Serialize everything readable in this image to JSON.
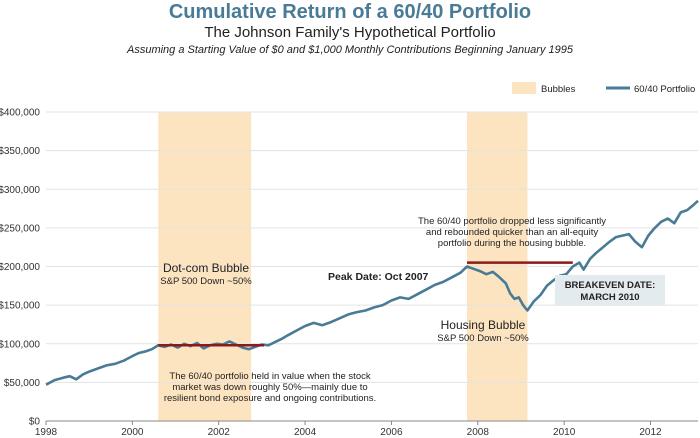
{
  "chart_data": {
    "type": "line",
    "title": "Cumulative Return of a 60/40 Portfolio",
    "subtitle": "The Johnson Family's Hypothetical Portfolio",
    "subtitle2": "Assuming a Starting Value of $0 and $1,000 Monthly Contributions Beginning January 1995",
    "xlabel": "",
    "ylabel": "",
    "xlim": [
      1998,
      2013.1
    ],
    "ylim": [
      0,
      400000
    ],
    "x_ticks": [
      {
        "value": 1998,
        "label": "1998"
      },
      {
        "value": 2000,
        "label": "2000"
      },
      {
        "value": 2002,
        "label": "2002"
      },
      {
        "value": 2004,
        "label": "2004"
      },
      {
        "value": 2006,
        "label": "2006"
      },
      {
        "value": 2008,
        "label": "2008"
      },
      {
        "value": 2010,
        "label": "2010"
      },
      {
        "value": 2012,
        "label": "2012"
      }
    ],
    "y_ticks": [
      {
        "value": 0,
        "label": "$0"
      },
      {
        "value": 50000,
        "label": "$50,000"
      },
      {
        "value": 100000,
        "label": "$100,000"
      },
      {
        "value": 150000,
        "label": "$150,000"
      },
      {
        "value": 200000,
        "label": "$200,000"
      },
      {
        "value": 250000,
        "label": "$250,000"
      },
      {
        "value": 300000,
        "label": "$300,000"
      },
      {
        "value": 350000,
        "label": "$350,000"
      },
      {
        "value": 400000,
        "label": "$400,000"
      }
    ],
    "grid": true,
    "legend_position": "top-right",
    "legend": {
      "bubbles_label": "Bubbles",
      "series_label": "60/40 Portfolio"
    },
    "colors": {
      "title": "#4a7b96",
      "line": "#4a7b96",
      "bubble": "#fde4c0",
      "breakeven": "#8b1a1a",
      "grid": "#e3e3e3",
      "breakeven_box": "#e3ebee"
    },
    "bubbles": [
      {
        "start": 2000.6,
        "end": 2002.75,
        "name": "Dot-com Bubble",
        "note": "S&P 500 Down ~50%"
      },
      {
        "start": 2007.75,
        "end": 2009.15,
        "name": "Housing Bubble",
        "note": "S&P 500 Down ~50%"
      }
    ],
    "breakeven_lines": [
      {
        "x_start": 2000.6,
        "x_end": 2003.05,
        "y": 98000
      },
      {
        "x_start": 2007.75,
        "x_end": 2010.2,
        "y": 205000
      }
    ],
    "annotations": {
      "peak_label": "Peak Date: Oct 2007",
      "breakeven_label_line1": "BREAKEVEN DATE:",
      "breakeven_label_line2": "MARCH 2010",
      "dotcom_note": [
        "The 60/40 portfolio held in value when the stock",
        "market was down roughly 50%—mainly due to",
        "resilient bond exposure and ongoing contributions."
      ],
      "housing_note": [
        "The 60/40 portfolio dropped less significantly",
        "and rebounded quicker than an all-equity",
        "portfolio during the housing bubble."
      ]
    },
    "series": [
      {
        "name": "60/40 Portfolio",
        "points": [
          [
            1998.0,
            47000
          ],
          [
            1998.2,
            53000
          ],
          [
            1998.4,
            56000
          ],
          [
            1998.55,
            58000
          ],
          [
            1998.7,
            54000
          ],
          [
            1998.85,
            60000
          ],
          [
            1999.0,
            64000
          ],
          [
            1999.2,
            68000
          ],
          [
            1999.4,
            72000
          ],
          [
            1999.6,
            74000
          ],
          [
            1999.8,
            78000
          ],
          [
            2000.0,
            84000
          ],
          [
            2000.15,
            88000
          ],
          [
            2000.3,
            90000
          ],
          [
            2000.45,
            93000
          ],
          [
            2000.6,
            98000
          ],
          [
            2000.75,
            96000
          ],
          [
            2000.9,
            99000
          ],
          [
            2001.05,
            95000
          ],
          [
            2001.2,
            100000
          ],
          [
            2001.35,
            97000
          ],
          [
            2001.5,
            101000
          ],
          [
            2001.65,
            94000
          ],
          [
            2001.8,
            98000
          ],
          [
            2001.95,
            100000
          ],
          [
            2002.1,
            99000
          ],
          [
            2002.25,
            103000
          ],
          [
            2002.4,
            99000
          ],
          [
            2002.55,
            95000
          ],
          [
            2002.7,
            93000
          ],
          [
            2002.85,
            96000
          ],
          [
            2003.0,
            99000
          ],
          [
            2003.15,
            98000
          ],
          [
            2003.3,
            102000
          ],
          [
            2003.45,
            106000
          ],
          [
            2003.6,
            111000
          ],
          [
            2003.8,
            117000
          ],
          [
            2004.0,
            123000
          ],
          [
            2004.2,
            127000
          ],
          [
            2004.4,
            124000
          ],
          [
            2004.6,
            128000
          ],
          [
            2004.8,
            133000
          ],
          [
            2005.0,
            138000
          ],
          [
            2005.2,
            141000
          ],
          [
            2005.4,
            143000
          ],
          [
            2005.6,
            147000
          ],
          [
            2005.8,
            150000
          ],
          [
            2006.0,
            156000
          ],
          [
            2006.2,
            160000
          ],
          [
            2006.4,
            158000
          ],
          [
            2006.6,
            164000
          ],
          [
            2006.8,
            170000
          ],
          [
            2007.0,
            176000
          ],
          [
            2007.2,
            180000
          ],
          [
            2007.4,
            186000
          ],
          [
            2007.6,
            192000
          ],
          [
            2007.75,
            200000
          ],
          [
            2007.9,
            197000
          ],
          [
            2008.05,
            194000
          ],
          [
            2008.2,
            190000
          ],
          [
            2008.35,
            193000
          ],
          [
            2008.5,
            186000
          ],
          [
            2008.65,
            178000
          ],
          [
            2008.75,
            165000
          ],
          [
            2008.85,
            158000
          ],
          [
            2008.95,
            160000
          ],
          [
            2009.05,
            150000
          ],
          [
            2009.15,
            143000
          ],
          [
            2009.3,
            155000
          ],
          [
            2009.45,
            163000
          ],
          [
            2009.6,
            175000
          ],
          [
            2009.75,
            182000
          ],
          [
            2009.9,
            188000
          ],
          [
            2010.05,
            190000
          ],
          [
            2010.2,
            200000
          ],
          [
            2010.35,
            205000
          ],
          [
            2010.45,
            196000
          ],
          [
            2010.6,
            210000
          ],
          [
            2010.75,
            218000
          ],
          [
            2010.9,
            225000
          ],
          [
            2011.05,
            232000
          ],
          [
            2011.2,
            238000
          ],
          [
            2011.35,
            240000
          ],
          [
            2011.5,
            242000
          ],
          [
            2011.65,
            232000
          ],
          [
            2011.8,
            225000
          ],
          [
            2011.95,
            240000
          ],
          [
            2012.1,
            250000
          ],
          [
            2012.25,
            258000
          ],
          [
            2012.4,
            262000
          ],
          [
            2012.55,
            256000
          ],
          [
            2012.7,
            270000
          ],
          [
            2012.85,
            273000
          ],
          [
            2013.0,
            280000
          ],
          [
            2013.1,
            285000
          ]
        ]
      }
    ]
  }
}
